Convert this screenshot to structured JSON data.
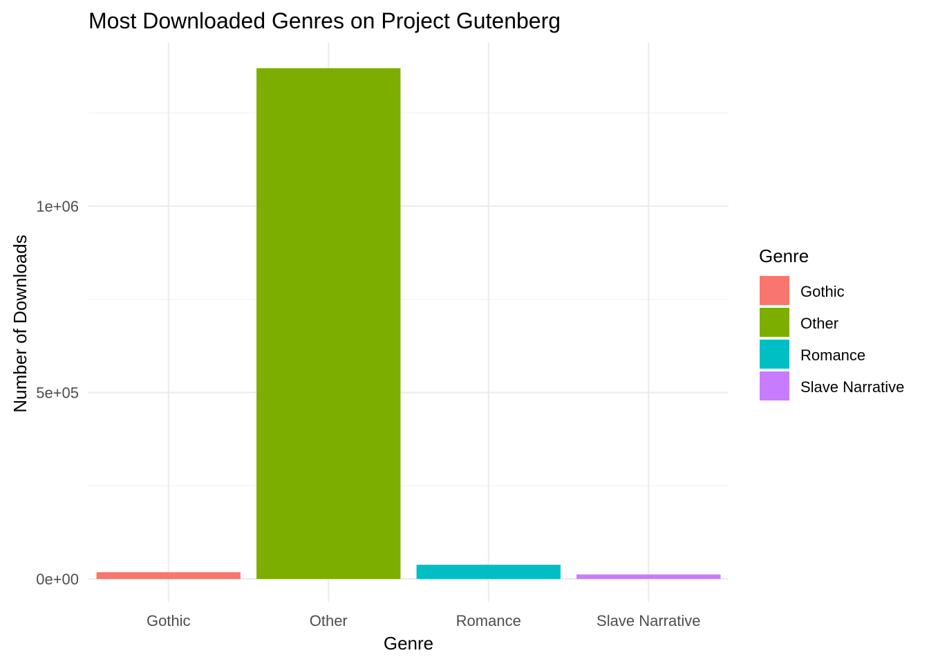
{
  "chart_data": {
    "type": "bar",
    "title": "Most Downloaded Genres on Project Gutenberg",
    "xlabel": "Genre",
    "ylabel": "Number of Downloads",
    "categories": [
      "Gothic",
      "Other",
      "Romance",
      "Slave Narrative"
    ],
    "values": [
      18000,
      1370000,
      38000,
      12000
    ],
    "ylim": [
      -50000,
      1440000
    ],
    "yticks": [
      0,
      500000,
      1000000
    ],
    "ytick_labels": [
      "0e+00",
      "5e+05",
      "1e+06"
    ],
    "yminor": [
      250000,
      750000,
      1250000
    ],
    "grid": true,
    "legend": {
      "title": "Genre",
      "position": "right",
      "entries": [
        "Gothic",
        "Other",
        "Romance",
        "Slave Narrative"
      ]
    },
    "colors": [
      "#F8766D",
      "#7CAE00",
      "#00BFC4",
      "#C77CFF"
    ]
  }
}
